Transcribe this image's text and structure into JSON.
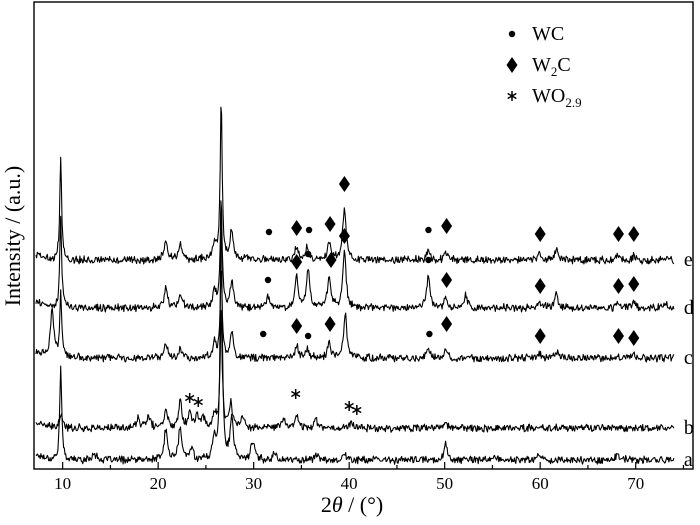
{
  "chart_data": {
    "type": "line",
    "xlabel": "2θ / (°)",
    "xlabel_parts": {
      "var": "2",
      "italic": "θ",
      "unit": " / (°)"
    },
    "ylabel": "Intensity / (a.u.)",
    "xlim": [
      7,
      76
    ],
    "xticks": [
      10,
      20,
      30,
      40,
      50,
      60,
      70
    ],
    "y_tick_labels": false,
    "grid": false,
    "legend_position": "top-right",
    "legend": [
      {
        "symbol": "circle",
        "label": "WC",
        "base": "WC",
        "sub": ""
      },
      {
        "symbol": "diamond",
        "label": "W2C",
        "base": "W",
        "sub": "2",
        "tail": "C"
      },
      {
        "symbol": "asterisk",
        "label": "WO2.9",
        "base": "WO",
        "sub": "2.9",
        "tail": ""
      }
    ],
    "x_range_data": [
      7.2,
      74
    ],
    "series": [
      {
        "name": "a",
        "offset": 0,
        "peaks": [
          [
            9.8,
            95
          ],
          [
            13.3,
            8
          ],
          [
            20.8,
            30
          ],
          [
            22.3,
            32
          ],
          [
            23.5,
            12
          ],
          [
            25.9,
            22
          ],
          [
            26.6,
            258
          ],
          [
            27.7,
            40
          ],
          [
            29.9,
            20
          ],
          [
            32.2,
            7
          ],
          [
            36.5,
            6
          ],
          [
            39.5,
            6
          ],
          [
            50.1,
            16
          ],
          [
            55.0,
            4
          ],
          [
            59.9,
            6
          ],
          [
            68.1,
            6
          ]
        ]
      },
      {
        "name": "b",
        "offset": 32,
        "peaks": [
          [
            9.8,
            12
          ],
          [
            17.9,
            10
          ],
          [
            19.0,
            12
          ],
          [
            20.8,
            18
          ],
          [
            22.3,
            28
          ],
          [
            23.3,
            16
          ],
          [
            24.1,
            12
          ],
          [
            24.7,
            10
          ],
          [
            25.9,
            14
          ],
          [
            26.6,
            120
          ],
          [
            27.6,
            24
          ],
          [
            28.9,
            12
          ],
          [
            33.1,
            10
          ],
          [
            34.5,
            14
          ],
          [
            36.5,
            10
          ],
          [
            40.2,
            7
          ],
          [
            50.1,
            6
          ]
        ],
        "markers": [
          {
            "symbol": "asterisk",
            "x": 23.3,
            "dy": 30
          },
          {
            "symbol": "asterisk",
            "x": 24.2,
            "dy": 26
          },
          {
            "symbol": "asterisk",
            "x": 34.4,
            "dy": 34
          },
          {
            "symbol": "asterisk",
            "x": 40.0,
            "dy": 22
          },
          {
            "symbol": "asterisk",
            "x": 40.8,
            "dy": 18
          }
        ]
      },
      {
        "name": "c",
        "offset": 102,
        "peaks": [
          [
            8.9,
            50
          ],
          [
            9.8,
            65
          ],
          [
            20.8,
            14
          ],
          [
            22.3,
            10
          ],
          [
            25.9,
            16
          ],
          [
            26.6,
            90
          ],
          [
            27.7,
            26
          ],
          [
            34.5,
            12
          ],
          [
            35.6,
            8
          ],
          [
            37.9,
            15
          ],
          [
            39.6,
            44
          ],
          [
            48.3,
            8
          ],
          [
            50.1,
            10
          ],
          [
            59.9,
            5
          ],
          [
            61.7,
            6
          ],
          [
            69.8,
            4
          ]
        ],
        "markers": [
          {
            "symbol": "circle",
            "x": 31.0,
            "dy": 24
          },
          {
            "symbol": "diamond",
            "x": 34.5,
            "dy": 32
          },
          {
            "symbol": "circle",
            "x": 35.7,
            "dy": 22
          },
          {
            "symbol": "diamond",
            "x": 38.0,
            "dy": 34
          },
          {
            "symbol": "circle",
            "x": 48.4,
            "dy": 24
          },
          {
            "symbol": "diamond",
            "x": 50.2,
            "dy": 34
          },
          {
            "symbol": "diamond",
            "x": 60.0,
            "dy": 22
          },
          {
            "symbol": "diamond",
            "x": 68.2,
            "dy": 22
          },
          {
            "symbol": "diamond",
            "x": 69.8,
            "dy": 20
          }
        ]
      },
      {
        "name": "d",
        "offset": 152,
        "peaks": [
          [
            9.8,
            90
          ],
          [
            20.8,
            20
          ],
          [
            22.3,
            16
          ],
          [
            25.9,
            18
          ],
          [
            26.6,
            110
          ],
          [
            27.7,
            26
          ],
          [
            31.5,
            12
          ],
          [
            34.5,
            32
          ],
          [
            35.7,
            38
          ],
          [
            37.9,
            32
          ],
          [
            39.5,
            56
          ],
          [
            48.3,
            32
          ],
          [
            50.1,
            10
          ],
          [
            52.2,
            12
          ],
          [
            59.9,
            8
          ],
          [
            61.7,
            14
          ],
          [
            68.2,
            6
          ],
          [
            69.8,
            6
          ],
          [
            73.2,
            5
          ]
        ],
        "markers": [
          {
            "symbol": "circle",
            "x": 31.5,
            "dy": 28
          },
          {
            "symbol": "diamond",
            "x": 34.5,
            "dy": 46
          },
          {
            "symbol": "circle",
            "x": 35.7,
            "dy": 54
          },
          {
            "symbol": "diamond",
            "x": 38.1,
            "dy": 48
          },
          {
            "symbol": "diamond",
            "x": 39.5,
            "dy": 72
          },
          {
            "symbol": "circle",
            "x": 48.3,
            "dy": 48
          },
          {
            "symbol": "diamond",
            "x": 50.2,
            "dy": 28
          },
          {
            "symbol": "diamond",
            "x": 60.0,
            "dy": 22
          },
          {
            "symbol": "diamond",
            "x": 68.2,
            "dy": 22
          },
          {
            "symbol": "diamond",
            "x": 69.8,
            "dy": 24
          }
        ]
      },
      {
        "name": "e",
        "offset": 200,
        "peaks": [
          [
            9.8,
            100
          ],
          [
            20.8,
            20
          ],
          [
            22.3,
            16
          ],
          [
            25.9,
            18
          ],
          [
            26.6,
            160
          ],
          [
            27.7,
            30
          ],
          [
            34.5,
            14
          ],
          [
            35.6,
            12
          ],
          [
            37.9,
            18
          ],
          [
            39.5,
            54
          ],
          [
            48.3,
            10
          ],
          [
            50.1,
            8
          ],
          [
            59.9,
            6
          ],
          [
            61.7,
            10
          ],
          [
            68.2,
            5
          ],
          [
            69.8,
            5
          ]
        ],
        "markers": [
          {
            "symbol": "circle",
            "x": 31.6,
            "dy": 28
          },
          {
            "symbol": "diamond",
            "x": 34.5,
            "dy": 32
          },
          {
            "symbol": "circle",
            "x": 35.8,
            "dy": 30
          },
          {
            "symbol": "diamond",
            "x": 38.0,
            "dy": 36
          },
          {
            "symbol": "diamond",
            "x": 39.5,
            "dy": 76
          },
          {
            "symbol": "circle",
            "x": 48.3,
            "dy": 30
          },
          {
            "symbol": "diamond",
            "x": 50.2,
            "dy": 34
          },
          {
            "symbol": "diamond",
            "x": 60.0,
            "dy": 26
          },
          {
            "symbol": "diamond",
            "x": 68.2,
            "dy": 26
          },
          {
            "symbol": "diamond",
            "x": 69.8,
            "dy": 26
          }
        ]
      }
    ]
  }
}
